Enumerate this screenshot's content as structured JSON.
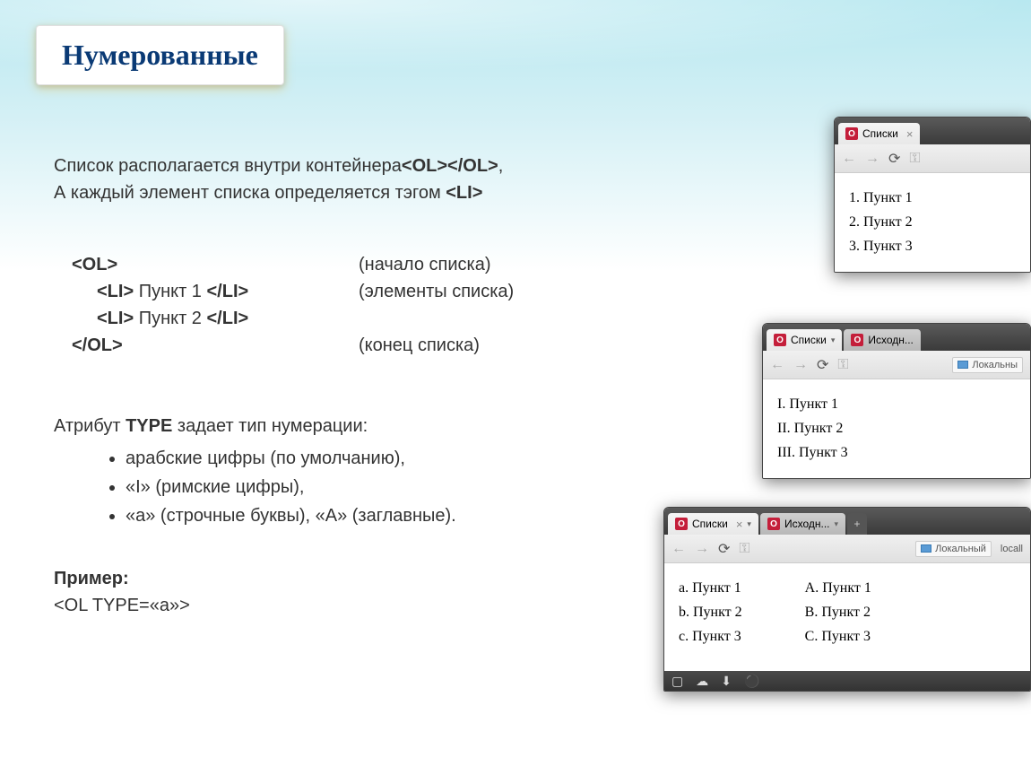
{
  "slide": {
    "title": "Нумерованные",
    "intro_line1": "Список располагается внутри контейнера",
    "intro_tag": "<OL></OL>",
    "intro_comma": ",",
    "intro_line2": "А каждый элемент списка определяется тэгом ",
    "intro_tag2": "<LI>",
    "code": {
      "l1_tag": "<OL>",
      "l1_comment": "(начало списка)",
      "l2_tag": "<LI>",
      "l2_text": " Пункт 1 ",
      "l2_close": "</LI>",
      "l2_comment": "(элементы списка)",
      "l3_tag": "<LI>",
      "l3_text": " Пункт 2 ",
      "l3_close": "</LI>",
      "l4_tag": "</OL>",
      "l4_comment": "(конец списка)"
    },
    "attr": {
      "prefix": "Атрибут ",
      "type_word": "TYPE",
      "suffix": " задает тип нумерации:",
      "b1": "арабские цифры (по умолчанию),",
      "b2": "«I» (римские цифры),",
      "b3": "«a» (строчные буквы), «A» (заглавные)."
    },
    "example": {
      "label": "Пример:",
      "code": "<OL TYPE=«a»>"
    }
  },
  "window1": {
    "tab_title": "Списки",
    "items": [
      "1.  Пункт 1",
      "2.  Пункт 2",
      "3.  Пункт 3"
    ]
  },
  "window2": {
    "tab1_title": "Списки",
    "tab2_title": "Исходн...",
    "local_label": "Локальны",
    "items": [
      "I.  Пункт 1",
      "II.  Пункт 2",
      "III.  Пункт 3"
    ]
  },
  "window3": {
    "tab1_title": "Списки",
    "tab2_title": "Исходн...",
    "local_label": "Локальный",
    "local_label2": "locall",
    "col1": [
      "a.  Пункт 1",
      "b.  Пункт 2",
      "c.  Пункт 3"
    ],
    "col2": [
      "A.  Пункт 1",
      "B.  Пункт 2",
      "C.  Пункт 3"
    ]
  },
  "icons": {
    "back": "←",
    "forward": "→",
    "reload": "⟳",
    "key": "⚿",
    "close": "×",
    "plus": "+",
    "caret": "▾",
    "square": "▢",
    "cloud": "☁",
    "dl": "⬇",
    "opera": "⚫"
  }
}
